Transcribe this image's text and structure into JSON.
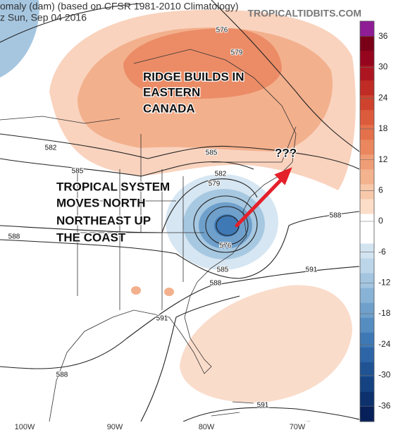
{
  "header": {
    "title": "omaly (dam) (based on CFSR 1981-2010 Climatology)",
    "subtitle": "z Sun, Sep 04 2016",
    "watermark": "TROPICALTIDBITS.COM"
  },
  "annotations": [
    "RIDGE BUILDS IN",
    "EASTERN",
    "CANADA",
    "TROPICAL SYSTEM",
    "MOVES NORTH",
    "NORTHEAST UP",
    "THE COAST",
    "???"
  ],
  "contour_labels": [
    "576",
    "579",
    "582",
    "585",
    "585",
    "582",
    "579",
    "588",
    "576",
    "585",
    "588",
    "588",
    "591",
    "591",
    "588",
    "591"
  ],
  "longitude_labels": [
    "100W",
    "90W",
    "80W",
    "70W"
  ],
  "colorbar": {
    "lim": [
      -39,
      39
    ],
    "ticks": [
      36,
      30,
      24,
      18,
      12,
      6,
      0,
      -6,
      -12,
      -18,
      -24,
      -30,
      -36
    ],
    "colors": [
      "#8e1d96",
      "#7a0018",
      "#95061e",
      "#ad1621",
      "#c02b25",
      "#cf432e",
      "#dc5b3c",
      "#e4714c",
      "#ea875f",
      "#ef9d76",
      "#f3b38f",
      "#f7c8aa",
      "#fbddc8",
      "#ffffff",
      "#ffffff",
      "#d3e4f1",
      "#bcd5e9",
      "#a3c5e0",
      "#89b3d6",
      "#6fa0cc",
      "#568dc1",
      "#3f79b5",
      "#2e65a6",
      "#205394",
      "#154281",
      "#0c316d",
      "#07205a"
    ]
  }
}
